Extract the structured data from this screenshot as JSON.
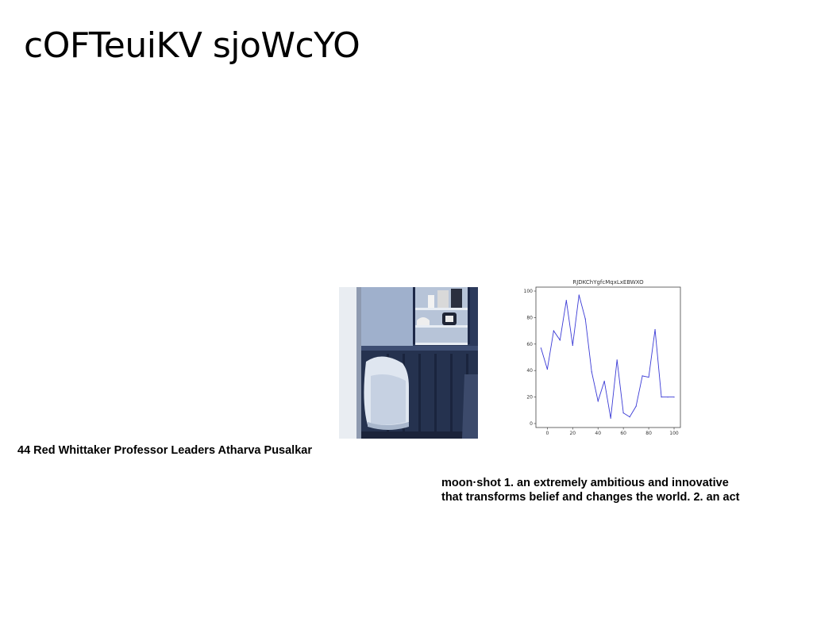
{
  "title": "cOFTeuiKV sjoWcYO",
  "captions": {
    "left": "44 Red Whittaker Professor Leaders Atharva Pusalkar",
    "right_line1": "moon·shot 1. an extremely ambitious and innovative",
    "right_line2": "that transforms belief and changes the world. 2. an act"
  },
  "chart_data": {
    "type": "line",
    "title": "RJDKChYgfcMqxLxEBWXO",
    "x": [
      -5,
      0,
      5,
      10,
      15,
      20,
      25,
      30,
      35,
      40,
      45,
      50,
      55,
      60,
      65,
      70,
      75,
      80,
      85,
      90,
      95,
      100
    ],
    "series": [
      {
        "values": [
          57,
          41,
          70,
          63,
          93,
          59,
          97,
          79,
          39,
          17,
          32,
          4,
          48,
          8,
          5,
          13,
          36,
          35,
          71,
          20,
          20,
          20
        ]
      }
    ],
    "xticks": [
      "0",
      "20",
      "40",
      "60",
      "80",
      "100"
    ],
    "yticks": [
      "0",
      "20",
      "40",
      "60",
      "80",
      "100"
    ],
    "xlim": [
      -9,
      105
    ],
    "ylim": [
      -3,
      103
    ],
    "grid": true,
    "line_color": "#3b3bd6"
  }
}
